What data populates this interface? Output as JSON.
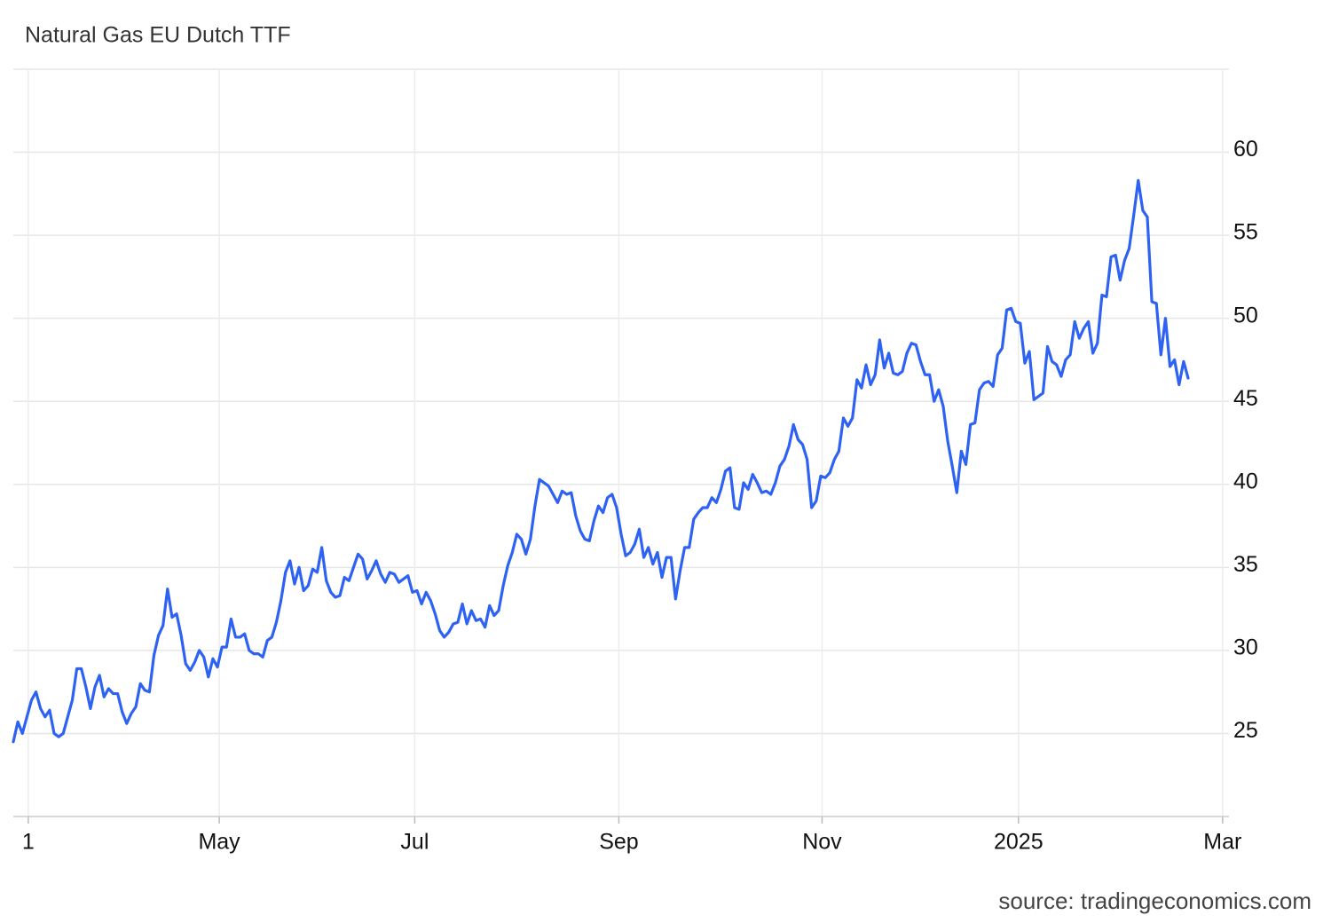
{
  "chart_data": {
    "type": "line",
    "title": "Natural Gas EU Dutch TTF",
    "source": "source: tradingeconomics.com",
    "color": "#2e62f2",
    "grid": true,
    "xlim": [
      0,
      268
    ],
    "xticks": [
      {
        "value": 3.3,
        "label": "1"
      },
      {
        "value": 45.4,
        "label": "May"
      },
      {
        "value": 88.5,
        "label": "Jul"
      },
      {
        "value": 133.5,
        "label": "Sep"
      },
      {
        "value": 178.3,
        "label": "Nov"
      },
      {
        "value": 221.6,
        "label": "2025"
      },
      {
        "value": 266.6,
        "label": "Mar"
      }
    ],
    "ylim": [
      20,
      65
    ],
    "yticks": [
      25,
      30,
      35,
      40,
      45,
      50,
      55,
      60
    ],
    "values": [
      24.5,
      25.7,
      25.0,
      26.0,
      27.0,
      27.5,
      26.5,
      26.0,
      26.4,
      25.0,
      24.8,
      25.0,
      26.0,
      27.0,
      28.9,
      28.9,
      27.8,
      26.5,
      27.8,
      28.5,
      27.2,
      27.7,
      27.4,
      27.4,
      26.3,
      25.6,
      26.2,
      26.6,
      28.0,
      27.6,
      27.5,
      29.7,
      30.9,
      31.5,
      33.7,
      32.0,
      32.2,
      30.9,
      29.2,
      28.8,
      29.3,
      30.0,
      29.6,
      28.4,
      29.5,
      29.0,
      30.2,
      30.2,
      31.9,
      30.8,
      30.8,
      31.0,
      30.0,
      29.8,
      29.8,
      29.6,
      30.6,
      30.8,
      31.7,
      33.0,
      34.7,
      35.4,
      34.0,
      35.0,
      33.6,
      33.9,
      34.9,
      34.7,
      36.2,
      34.2,
      33.5,
      33.2,
      33.3,
      34.4,
      34.2,
      35.0,
      35.8,
      35.5,
      34.3,
      34.8,
      35.4,
      34.6,
      34.1,
      34.7,
      34.6,
      34.1,
      34.3,
      34.5,
      33.5,
      33.6,
      32.8,
      33.5,
      33.0,
      32.2,
      31.2,
      30.8,
      31.1,
      31.6,
      31.7,
      32.8,
      31.6,
      32.4,
      31.8,
      31.9,
      31.4,
      32.7,
      32.1,
      32.4,
      33.9,
      35.1,
      35.9,
      37.0,
      36.7,
      35.8,
      36.7,
      38.7,
      40.3,
      40.1,
      39.9,
      39.4,
      38.9,
      39.6,
      39.4,
      39.5,
      38.1,
      37.2,
      36.7,
      36.6,
      37.8,
      38.7,
      38.3,
      39.2,
      39.4,
      38.6,
      37.0,
      35.7,
      35.9,
      36.4,
      37.3,
      35.6,
      36.2,
      35.2,
      35.9,
      34.4,
      35.6,
      35.6,
      33.1,
      34.8,
      36.2,
      36.2,
      37.9,
      38.3,
      38.6,
      38.6,
      39.2,
      38.9,
      39.7,
      40.8,
      41.0,
      38.6,
      38.5,
      40.1,
      39.7,
      40.6,
      40.1,
      39.5,
      39.6,
      39.4,
      40.1,
      41.1,
      41.5,
      42.3,
      43.6,
      42.7,
      42.4,
      41.5,
      38.6,
      39.0,
      40.5,
      40.4,
      40.7,
      41.5,
      42.0,
      44.0,
      43.5,
      44.0,
      46.3,
      45.8,
      47.2,
      46.0,
      46.6,
      48.7,
      47.0,
      47.9,
      46.7,
      46.6,
      46.8,
      47.9,
      48.5,
      48.4,
      47.4,
      46.6,
      46.6,
      45.0,
      45.7,
      44.7,
      42.6,
      41.1,
      39.5,
      42.0,
      41.2,
      43.6,
      43.7,
      45.7,
      46.1,
      46.2,
      45.9,
      47.8,
      48.2,
      50.5,
      50.6,
      49.8,
      49.7,
      47.3,
      48.0,
      45.1,
      45.3,
      45.5,
      48.3,
      47.4,
      47.2,
      46.5,
      47.5,
      47.8,
      49.8,
      48.8,
      49.4,
      49.8,
      47.9,
      48.5,
      51.4,
      51.3,
      53.7,
      53.8,
      52.3,
      53.5,
      54.2,
      56.2,
      58.3,
      56.5,
      56.1,
      51.0,
      50.9,
      47.8,
      50.0,
      47.1,
      47.5,
      46.0,
      47.4,
      46.4
    ]
  }
}
